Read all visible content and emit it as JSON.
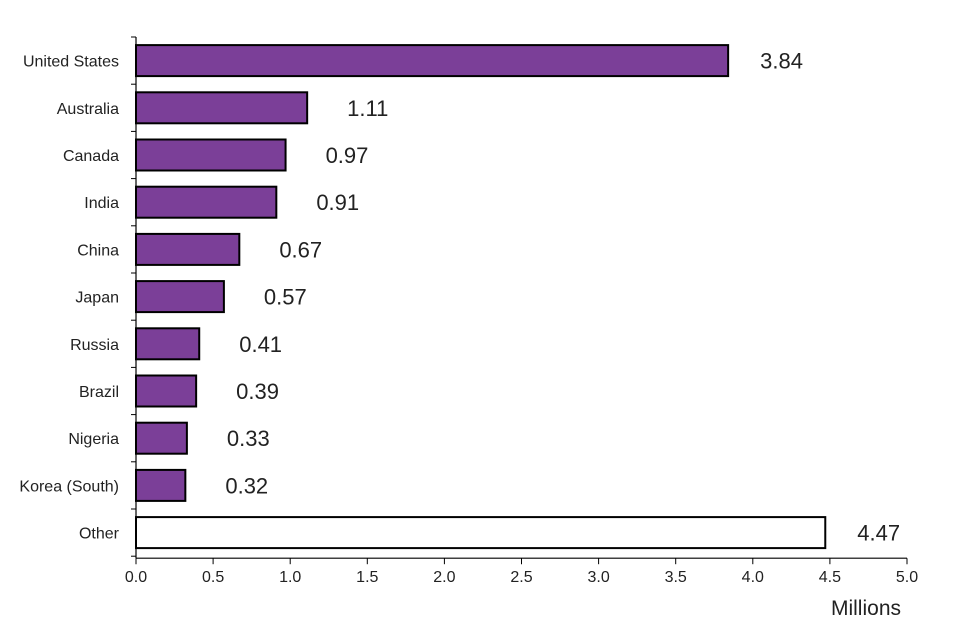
{
  "chart_data": {
    "type": "bar",
    "orientation": "horizontal",
    "title": "",
    "xlabel": "Millions",
    "ylabel": "",
    "xlim": [
      0,
      5
    ],
    "xticks": [
      "0.0",
      "0.5",
      "1.0",
      "1.5",
      "2.0",
      "2.5",
      "3.0",
      "3.5",
      "4.0",
      "4.5",
      "5.0"
    ],
    "grid": false,
    "legend": "none",
    "categories": [
      "United States",
      "Australia",
      "Canada",
      "India",
      "China",
      "Japan",
      "Russia",
      "Brazil",
      "Nigeria",
      "Korea (South)",
      "Other"
    ],
    "values": [
      3.84,
      1.11,
      0.97,
      0.91,
      0.67,
      0.57,
      0.41,
      0.39,
      0.33,
      0.32,
      4.47
    ],
    "value_labels": [
      "3.84",
      "1.11",
      "0.97",
      "0.91",
      "0.67",
      "0.57",
      "0.41",
      "0.39",
      "0.33",
      "0.32",
      "4.47"
    ],
    "bar_colors": [
      "#7B3F98",
      "#7B3F98",
      "#7B3F98",
      "#7B3F98",
      "#7B3F98",
      "#7B3F98",
      "#7B3F98",
      "#7B3F98",
      "#7B3F98",
      "#7B3F98",
      "#FFFFFF"
    ]
  }
}
